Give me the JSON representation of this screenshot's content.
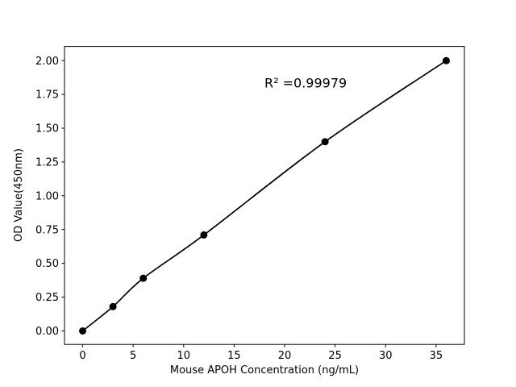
{
  "chart_data": {
    "type": "scatter",
    "x": [
      0,
      3,
      6,
      12,
      24,
      36
    ],
    "y": [
      0.0,
      0.18,
      0.39,
      0.71,
      1.4,
      2.0
    ],
    "title": "",
    "xlabel": "Mouse APOH Concentration (ng/mL)",
    "ylabel": "OD Value(450nm)",
    "xlim": [
      -1.8,
      37.8
    ],
    "ylim": [
      -0.1,
      2.105
    ],
    "xticks": [
      0,
      5,
      10,
      15,
      20,
      25,
      30,
      35
    ],
    "yticks": [
      0.0,
      0.25,
      0.5,
      0.75,
      1.0,
      1.25,
      1.5,
      1.75,
      2.0
    ],
    "annotation": {
      "text": "R² =0.99979",
      "x": 18,
      "y": 1.8
    },
    "line_color": "#000000",
    "marker_color": "#000000",
    "marker_radius": 4.5,
    "background": "#ffffff",
    "grid": false,
    "legend": null
  }
}
